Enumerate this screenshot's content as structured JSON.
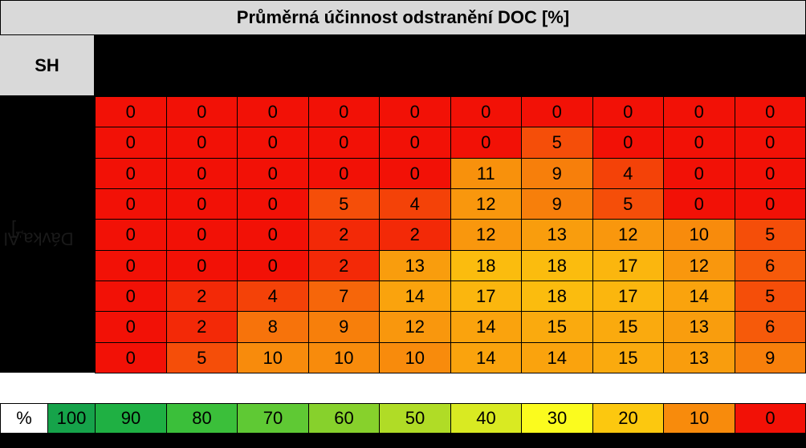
{
  "chart_data": {
    "type": "heatmap",
    "title": "Průměrná účinnost odstranění DOC [%]",
    "corner_label": "SH",
    "ylabel": "Dávka Al [mg·L",
    "ylabel_sup": "-1",
    "ylabel_end": "]",
    "values": [
      [
        0,
        0,
        0,
        0,
        0,
        0,
        0,
        0,
        0,
        0
      ],
      [
        0,
        0,
        0,
        0,
        0,
        0,
        5,
        0,
        0,
        0
      ],
      [
        0,
        0,
        0,
        0,
        0,
        11,
        9,
        4,
        0,
        0
      ],
      [
        0,
        0,
        0,
        5,
        4,
        12,
        9,
        5,
        0,
        0
      ],
      [
        0,
        0,
        0,
        2,
        2,
        12,
        13,
        12,
        10,
        5
      ],
      [
        0,
        0,
        0,
        2,
        13,
        18,
        18,
        17,
        12,
        6
      ],
      [
        0,
        2,
        4,
        7,
        14,
        17,
        18,
        17,
        14,
        5
      ],
      [
        0,
        2,
        8,
        9,
        12,
        14,
        15,
        15,
        13,
        6
      ],
      [
        0,
        5,
        10,
        10,
        10,
        14,
        14,
        15,
        13,
        9
      ]
    ],
    "legend": {
      "label": "%",
      "stops": [
        {
          "value": "100",
          "color": "#16a34a"
        },
        {
          "value": "90",
          "color": "#1fb043"
        },
        {
          "value": "80",
          "color": "#3bbf3a"
        },
        {
          "value": "70",
          "color": "#5fc934"
        },
        {
          "value": "60",
          "color": "#87d12c"
        },
        {
          "value": "50",
          "color": "#b0dc26"
        },
        {
          "value": "40",
          "color": "#d9ea22"
        },
        {
          "value": "30",
          "color": "#fbfb1e"
        },
        {
          "value": "20",
          "color": "#fcc80f"
        },
        {
          "value": "10",
          "color": "#f88b0c"
        },
        {
          "value": "0",
          "color": "#f21106"
        }
      ]
    }
  }
}
